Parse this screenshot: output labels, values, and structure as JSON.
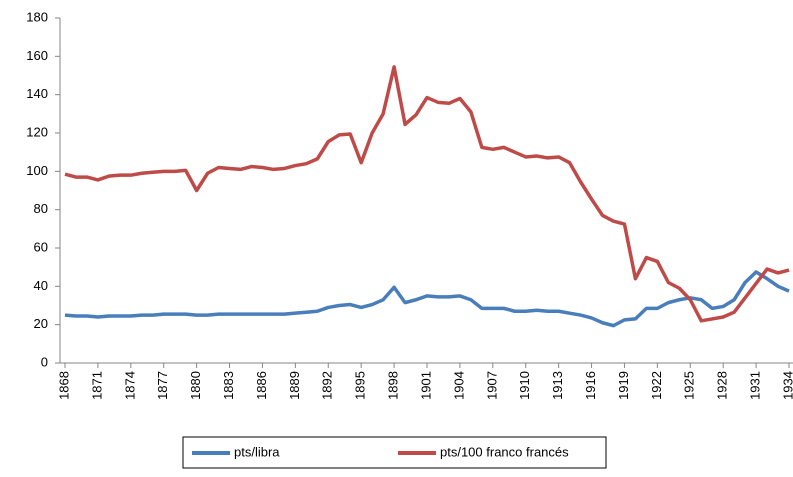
{
  "chart_data": {
    "type": "line",
    "x": [
      1868,
      1869,
      1870,
      1871,
      1872,
      1873,
      1874,
      1875,
      1876,
      1877,
      1878,
      1879,
      1880,
      1881,
      1882,
      1883,
      1884,
      1885,
      1886,
      1887,
      1888,
      1889,
      1890,
      1891,
      1892,
      1893,
      1894,
      1895,
      1896,
      1897,
      1898,
      1899,
      1900,
      1901,
      1902,
      1903,
      1904,
      1905,
      1906,
      1907,
      1908,
      1909,
      1910,
      1911,
      1912,
      1913,
      1914,
      1915,
      1916,
      1917,
      1918,
      1919,
      1920,
      1921,
      1922,
      1923,
      1924,
      1925,
      1926,
      1927,
      1928,
      1929,
      1930,
      1931,
      1932,
      1933,
      1934
    ],
    "series": [
      {
        "name": "pts/libra",
        "color": "#4a7ebb",
        "values": [
          25,
          24.5,
          24.5,
          24,
          24.5,
          24.5,
          24.5,
          25,
          25,
          25.5,
          25.5,
          25.5,
          25,
          25,
          25.5,
          25.5,
          25.5,
          25.5,
          25.5,
          25.5,
          25.5,
          26,
          26.5,
          27,
          29,
          30,
          30.5,
          29,
          30.5,
          33,
          39.5,
          31.5,
          33,
          35,
          34.5,
          34.5,
          35,
          33,
          28.5,
          28.5,
          28.5,
          27,
          27,
          27.5,
          27,
          27,
          26,
          25,
          23.5,
          21,
          19.5,
          22.5,
          23,
          28.5,
          28.5,
          31.5,
          33,
          34,
          33,
          28.5,
          29.5,
          33,
          42,
          47.5,
          44,
          40,
          37.5
        ]
      },
      {
        "name": "pts/100 franco francés",
        "color": "#be4b48",
        "values": [
          98.5,
          97,
          97,
          95.5,
          97.5,
          98,
          98,
          99,
          99.5,
          100,
          100,
          100.5,
          90,
          99,
          102,
          101.5,
          101,
          102.5,
          102,
          101,
          101.5,
          103,
          104,
          106.5,
          115.5,
          119,
          119.5,
          104.5,
          120,
          130,
          154.5,
          124.5,
          129.5,
          138.5,
          136,
          135.5,
          138,
          131,
          112.5,
          111.5,
          112.5,
          110,
          107.5,
          108,
          107,
          107.5,
          104.5,
          94.5,
          85.5,
          77,
          74,
          72.5,
          44,
          55,
          53,
          42,
          39,
          33,
          22,
          23,
          24,
          26.5,
          34,
          41.5,
          49,
          47,
          48.5
        ]
      }
    ],
    "xlim": [
      1868,
      1934
    ],
    "xticks": [
      1868,
      1871,
      1874,
      1877,
      1880,
      1883,
      1886,
      1889,
      1892,
      1895,
      1898,
      1901,
      1904,
      1907,
      1910,
      1913,
      1916,
      1919,
      1922,
      1925,
      1928,
      1931,
      1934
    ],
    "ylim": [
      0,
      180
    ],
    "yticks": [
      0,
      20,
      40,
      60,
      80,
      100,
      120,
      140,
      160,
      180
    ],
    "grid": false,
    "legend": "bottom"
  }
}
